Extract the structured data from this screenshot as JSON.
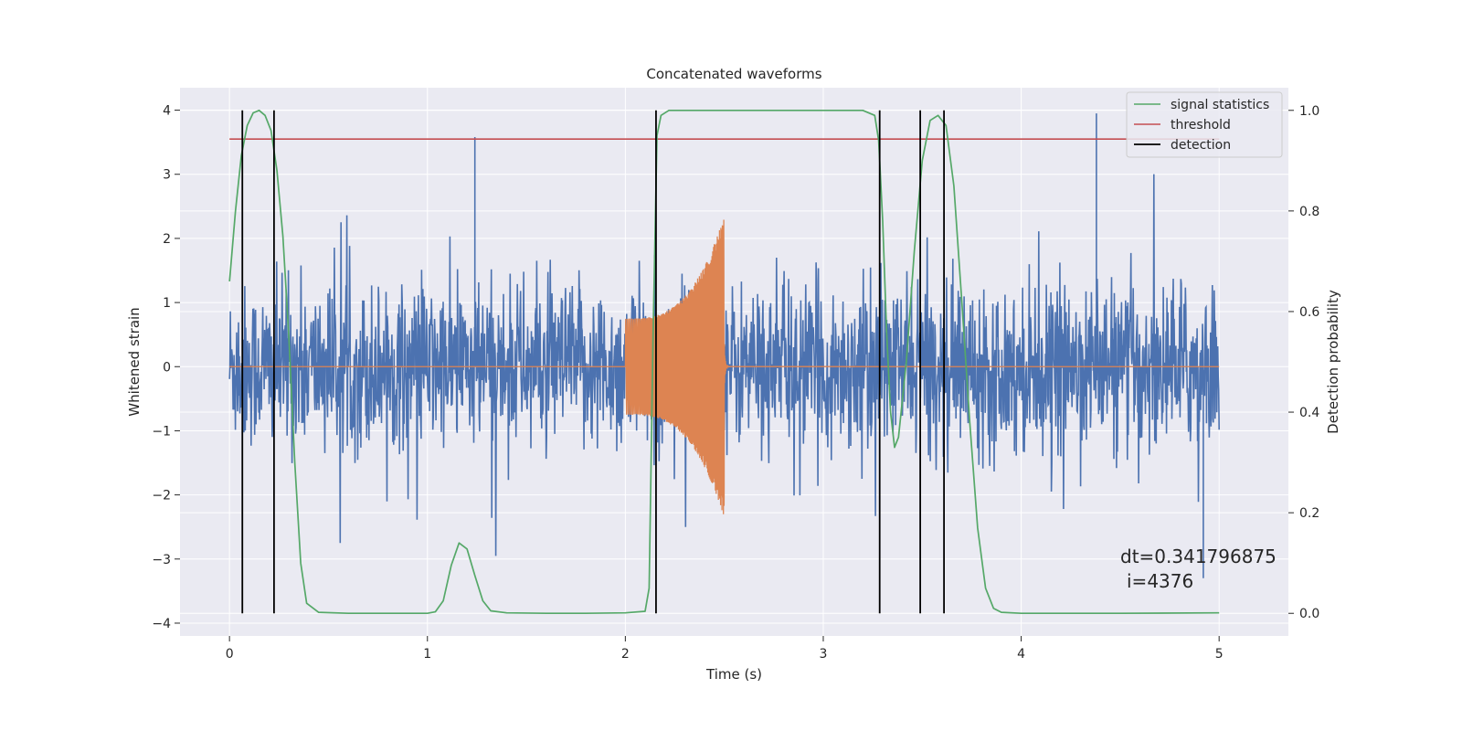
{
  "chart_data": {
    "type": "line",
    "title": "Concatenated waveforms",
    "xlabel": "Time (s)",
    "ylabel": "Whitened strain",
    "ylabel_right": "Detection probability",
    "xlim": [
      -0.25,
      5.35
    ],
    "ylim": [
      -4.2,
      4.35
    ],
    "ylim_right": [
      -0.045,
      1.045
    ],
    "xticks": [
      0,
      1,
      2,
      3,
      4,
      5
    ],
    "xtick_labels": [
      "0",
      "1",
      "2",
      "3",
      "4",
      "5"
    ],
    "yticks": [
      -4,
      -3,
      -2,
      -1,
      0,
      1,
      2,
      3,
      4
    ],
    "ytick_labels": [
      "−4",
      "−3",
      "−2",
      "−1",
      "0",
      "1",
      "2",
      "3",
      "4"
    ],
    "yticks_right": [
      0.0,
      0.2,
      0.4,
      0.6,
      0.8,
      1.0
    ],
    "ytick_labels_right": [
      "0.0",
      "0.2",
      "0.4",
      "0.6",
      "0.8",
      "1.0"
    ],
    "grid": true,
    "legend_position": "top-right",
    "series": [
      {
        "name": "",
        "kind": "strain-noise",
        "color": "#4c72b0",
        "axis": "left",
        "x_range": [
          0,
          5
        ],
        "typical_amplitude": 1.0,
        "approx_max": 3.95,
        "approx_min": -3.3
      },
      {
        "name": "",
        "kind": "chirp-waveform",
        "color": "#dd8452",
        "axis": "left",
        "x_range": [
          0,
          5
        ],
        "chirp_start": 2.0,
        "chirp_end": 2.5,
        "start_amplitude": 0.75,
        "peak_amplitude": 2.35,
        "min_value": -2.3
      },
      {
        "name": "signal statistics",
        "color": "#55a868",
        "axis": "right",
        "x": [
          0.0,
          0.03,
          0.06,
          0.09,
          0.12,
          0.15,
          0.18,
          0.21,
          0.24,
          0.27,
          0.3,
          0.33,
          0.36,
          0.39,
          0.45,
          0.6,
          0.8,
          1.0,
          1.04,
          1.08,
          1.12,
          1.16,
          1.2,
          1.24,
          1.28,
          1.32,
          1.4,
          1.6,
          1.8,
          2.0,
          2.1,
          2.12,
          2.14,
          2.16,
          2.18,
          2.22,
          2.4,
          2.8,
          3.2,
          3.26,
          3.28,
          3.3,
          3.32,
          3.34,
          3.36,
          3.38,
          3.42,
          3.46,
          3.5,
          3.54,
          3.58,
          3.62,
          3.66,
          3.7,
          3.74,
          3.78,
          3.82,
          3.86,
          3.9,
          4.0,
          4.5,
          5.0
        ],
        "values": [
          0.66,
          0.8,
          0.91,
          0.97,
          0.995,
          1.0,
          0.99,
          0.96,
          0.88,
          0.75,
          0.55,
          0.3,
          0.1,
          0.02,
          0.002,
          0.0,
          0.0,
          0.0,
          0.003,
          0.025,
          0.095,
          0.14,
          0.128,
          0.075,
          0.025,
          0.005,
          0.001,
          0.0,
          0.0,
          0.001,
          0.004,
          0.05,
          0.55,
          0.95,
          0.99,
          1.0,
          1.0,
          1.0,
          1.0,
          0.99,
          0.94,
          0.78,
          0.56,
          0.4,
          0.33,
          0.35,
          0.5,
          0.72,
          0.9,
          0.98,
          0.99,
          0.97,
          0.85,
          0.62,
          0.38,
          0.17,
          0.05,
          0.01,
          0.002,
          0.0,
          0.0,
          0.001
        ]
      },
      {
        "name": "threshold",
        "color": "#c44e52",
        "axis": "right",
        "x": [
          0,
          5
        ],
        "values": [
          0.943,
          0.943
        ]
      }
    ],
    "detections": {
      "name": "detection",
      "color": "#000000",
      "axis": "right",
      "x": [
        0.065,
        0.225,
        2.155,
        3.285,
        3.49,
        3.61
      ],
      "range": [
        0.0,
        1.0
      ]
    },
    "annotation": {
      "line1": "dt=0.341796875",
      "line2": "i=4376"
    }
  }
}
